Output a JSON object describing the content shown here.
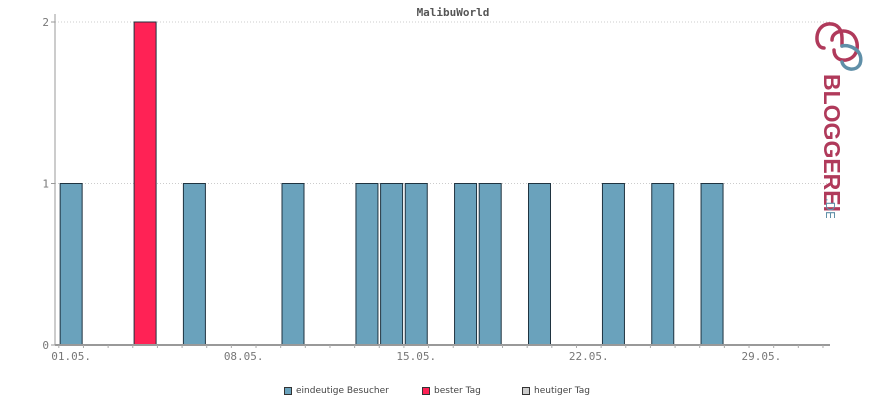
{
  "chart_data": {
    "type": "bar",
    "title": "MalibuWorld",
    "xlabel": "",
    "ylabel": "",
    "ylim": [
      0,
      2
    ],
    "yticks": [
      0,
      1,
      2
    ],
    "x_tick_labels": [
      "01.05.",
      "08.05.",
      "15.05.",
      "22.05.",
      "29.05."
    ],
    "x_tick_days": [
      1,
      8,
      15,
      22,
      29
    ],
    "xlim_days": [
      0,
      31
    ],
    "grid": true,
    "legend_position": "bottom",
    "bars": [
      {
        "day": 1,
        "value": 1,
        "series": "eindeutige Besucher"
      },
      {
        "day": 4,
        "value": 2,
        "series": "bester Tag"
      },
      {
        "day": 6,
        "value": 1,
        "series": "eindeutige Besucher"
      },
      {
        "day": 10,
        "value": 1,
        "series": "eindeutige Besucher"
      },
      {
        "day": 13,
        "value": 1,
        "series": "eindeutige Besucher"
      },
      {
        "day": 14,
        "value": 1,
        "series": "eindeutige Besucher"
      },
      {
        "day": 15,
        "value": 1,
        "series": "eindeutige Besucher"
      },
      {
        "day": 17,
        "value": 1,
        "series": "eindeutige Besucher"
      },
      {
        "day": 18,
        "value": 1,
        "series": "eindeutige Besucher"
      },
      {
        "day": 20,
        "value": 1,
        "series": "eindeutige Besucher"
      },
      {
        "day": 23,
        "value": 1,
        "series": "eindeutige Besucher"
      },
      {
        "day": 25,
        "value": 1,
        "series": "eindeutige Besucher"
      },
      {
        "day": 27,
        "value": 1,
        "series": "eindeutige Besucher"
      }
    ],
    "series": [
      {
        "name": "eindeutige Besucher",
        "color": "#6aa2bc"
      },
      {
        "name": "bester Tag",
        "color": "#ff2255"
      },
      {
        "name": "heutiger Tag",
        "color": "#cccccc"
      }
    ]
  },
  "legend": {
    "items": [
      {
        "label": "eindeutige Besucher",
        "color": "#6aa2bc"
      },
      {
        "label": "bester Tag",
        "color": "#ff2255"
      },
      {
        "label": "heutiger Tag",
        "color": "#cccccc"
      }
    ]
  },
  "brand": {
    "logo_text": "BLOGGEREI.DE",
    "logo_main": "BLOGGEREI",
    "logo_suffix": ".DE",
    "colors": {
      "main": "#b03a5b",
      "accent": "#5f8fa8"
    }
  }
}
